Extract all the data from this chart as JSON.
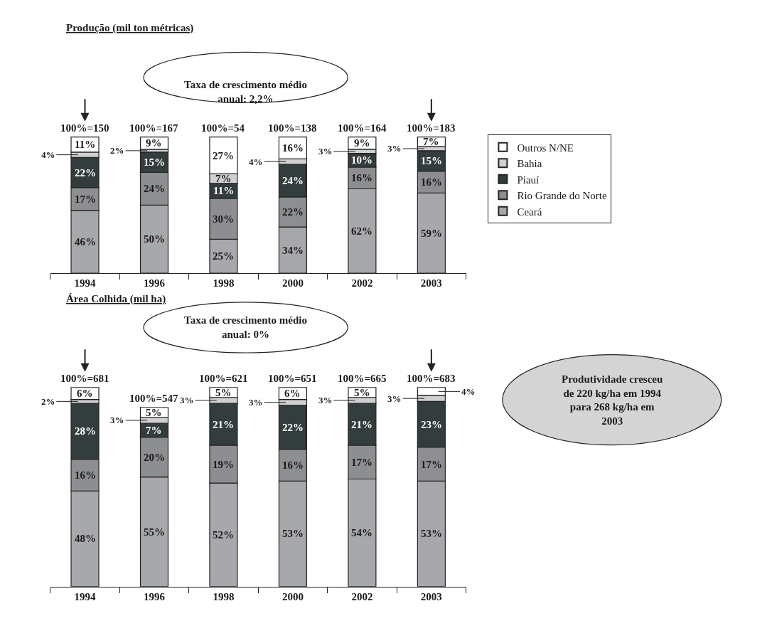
{
  "chart_data": [
    {
      "type": "bar",
      "title": "Produção (mil ton métricas)",
      "stacked": true,
      "legend": "right",
      "tick_labels": "x",
      "categories": [
        "1994",
        "1996",
        "1998",
        "2000",
        "2002",
        "2003"
      ],
      "series": [
        {
          "name": "Ceará",
          "color": "#a6a8ab",
          "values": [
            46,
            50,
            25,
            34,
            62,
            59
          ],
          "value_labels": [
            "46%",
            "50%",
            "25%",
            "34%",
            "62%",
            "59%"
          ]
        },
        {
          "name": "Rio Grande do Norte",
          "color": "#8c8e91",
          "values": [
            17,
            24,
            30,
            22,
            16,
            16
          ],
          "value_labels": [
            "17%",
            "24%",
            "30%",
            "22%",
            "16%",
            "16%"
          ]
        },
        {
          "name": "Piauí",
          "color": "#343d3d",
          "values": [
            22,
            15,
            11,
            24,
            10,
            15
          ],
          "value_labels": [
            "22%",
            "15%",
            "11%",
            "24%",
            "10%",
            "15%"
          ]
        },
        {
          "name": "Bahia",
          "color": "#d0d0d0",
          "values": [
            4,
            2,
            7,
            4,
            3,
            3
          ],
          "value_labels": [
            "4%",
            "2%",
            "7%",
            "4%",
            "3%",
            "3%"
          ]
        },
        {
          "name": "Outros N/NE",
          "color": "#ffffff",
          "values": [
            11,
            9,
            27,
            16,
            9,
            7
          ],
          "value_labels": [
            "11%",
            "9%",
            "27%",
            "16%",
            "9%",
            "7%"
          ]
        }
      ],
      "totals": [
        "100%=150",
        "100%=167",
        "100%=54",
        "100%=138",
        "100%=164",
        "100%=183"
      ],
      "annotations": [
        "Taxa de crescimento médio anual: 2,2%"
      ]
    },
    {
      "type": "bar",
      "title": "Área Colhida (mil ha)",
      "stacked": true,
      "tick_labels": "x",
      "categories": [
        "1994",
        "1996",
        "1998",
        "2000",
        "2002",
        "2003"
      ],
      "series": [
        {
          "color": "#a6a8ab",
          "values": [
            48,
            55,
            52,
            53,
            54,
            53
          ],
          "value_labels": [
            "48%",
            "55%",
            "52%",
            "53%",
            "54%",
            "53%"
          ]
        },
        {
          "color": "#8c8e91",
          "values": [
            16,
            20,
            19,
            16,
            17,
            17
          ],
          "value_labels": [
            "16%",
            "20%",
            "19%",
            "16%",
            "17%",
            "17%"
          ]
        },
        {
          "color": "#343d3d",
          "values": [
            28,
            7,
            21,
            22,
            21,
            23
          ],
          "value_labels": [
            "28%",
            "7%",
            "21%",
            "22%",
            "21%",
            "23%"
          ]
        },
        {
          "color": "#d0d0d0",
          "values": [
            2,
            3,
            3,
            3,
            3,
            3
          ],
          "value_labels": [
            "2%",
            "3%",
            "3%",
            "3%",
            "3%",
            "3%"
          ]
        },
        {
          "color": "#ffffff",
          "values": [
            6,
            5,
            5,
            6,
            5,
            4
          ],
          "value_labels": [
            "6%",
            "5%",
            "5%",
            "6%",
            "5%",
            "4%"
          ]
        }
      ],
      "totals": [
        "100%=681",
        "100%=547",
        "100%=621",
        "100%=651",
        "100%=665",
        "100%=683"
      ],
      "annotations": [
        "Taxa de crescimento médio anual: 0%",
        "Produtividade cresceu de 220 kg/ha em 1994 para 268 kg/ha em 2003"
      ]
    }
  ]
}
